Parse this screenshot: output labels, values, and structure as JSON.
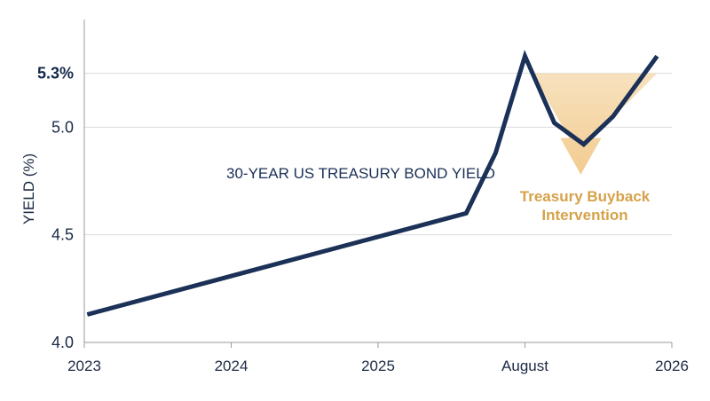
{
  "chart_data": {
    "type": "line",
    "title": "",
    "xlabel": "",
    "ylabel": "YIELD (%)",
    "ylim": [
      4.0,
      5.5
    ],
    "y_ticks": [
      {
        "value": 4.0,
        "label": "4.0",
        "emphasis": false
      },
      {
        "value": 4.5,
        "label": "4.5",
        "emphasis": false
      },
      {
        "value": 5.0,
        "label": "5.0",
        "emphasis": false
      },
      {
        "value": 5.25,
        "label": "5.3%",
        "emphasis": true
      }
    ],
    "x_ticks": [
      "2023",
      "2024",
      "2025",
      "August",
      "2026"
    ],
    "series": [
      {
        "name": "30-YEAR US TREASURY BOND YIELD",
        "color": "#1b3157",
        "x_index": [
          0.02,
          2.6,
          2.8,
          3.0,
          3.2,
          3.4,
          3.6,
          3.9
        ],
        "values": [
          4.13,
          4.6,
          4.88,
          5.33,
          5.02,
          4.92,
          5.05,
          5.33
        ]
      }
    ],
    "annotations": [
      {
        "text_line1": "Treasury Buyback",
        "text_line2": "Intervention",
        "color": "#d6a24a"
      }
    ],
    "grid": "horizontal"
  }
}
